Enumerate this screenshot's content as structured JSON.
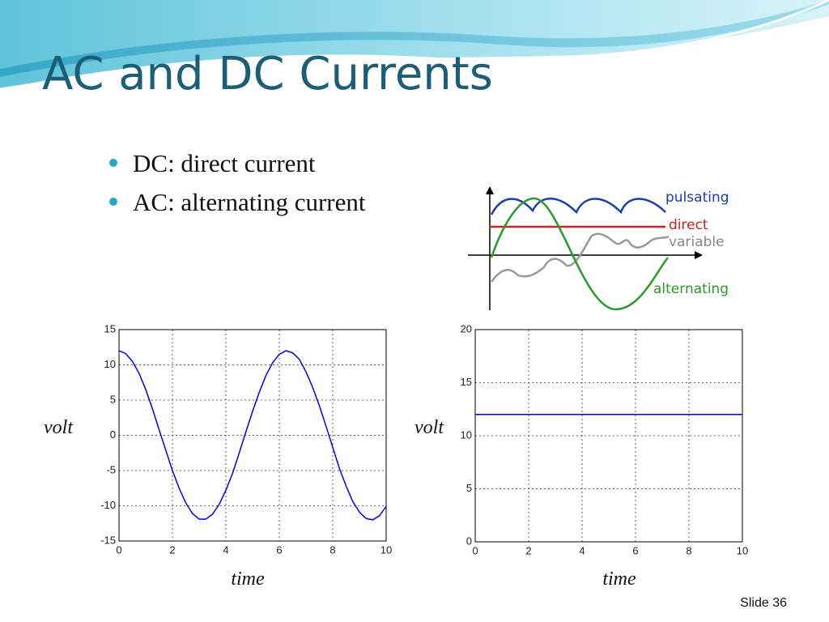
{
  "title": "AC and DC Currents",
  "bullets": [
    "DC: direct current",
    "AC: alternating current"
  ],
  "diagram": {
    "labels": [
      "pulsating",
      "direct",
      "variable",
      "alternating"
    ]
  },
  "slide_number": "Slide 36",
  "chart_data": [
    {
      "type": "line",
      "x_label": "time",
      "y_label": "volt",
      "xlim": [
        0,
        10
      ],
      "ylim": [
        -15,
        15
      ],
      "xticks": [
        0,
        2,
        4,
        6,
        8,
        10
      ],
      "yticks": [
        -15,
        -10,
        -5,
        0,
        5,
        10,
        15
      ],
      "grid": true,
      "color": "#0000ee",
      "x": [
        0,
        0.25,
        0.5,
        0.75,
        1,
        1.25,
        1.5,
        1.75,
        2,
        2.25,
        2.5,
        2.75,
        3,
        3.25,
        3.5,
        3.75,
        4,
        4.25,
        4.5,
        4.75,
        5,
        5.25,
        5.5,
        5.75,
        6,
        6.25,
        6.5,
        6.75,
        7,
        7.25,
        7.5,
        7.75,
        8,
        8.25,
        8.5,
        8.75,
        9,
        9.25,
        9.5,
        9.75,
        10
      ],
      "values": [
        12,
        11.6,
        10.5,
        8.8,
        6.5,
        3.8,
        0.8,
        -2.1,
        -5,
        -7.5,
        -9.6,
        -11.1,
        -11.9,
        -11.9,
        -11.2,
        -9.8,
        -7.8,
        -5.4,
        -2.5,
        0.5,
        3.4,
        6.1,
        8.5,
        10.3,
        11.5,
        12,
        11.7,
        10.8,
        9,
        6.8,
        4.2,
        1.3,
        -1.7,
        -4.7,
        -7.2,
        -9.4,
        -10.9,
        -11.8,
        -12,
        -11.4,
        -10.1
      ]
    },
    {
      "type": "line",
      "x_label": "time",
      "y_label": "volt",
      "xlim": [
        0,
        10
      ],
      "ylim": [
        0,
        20
      ],
      "xticks": [
        0,
        2,
        4,
        6,
        8,
        10
      ],
      "yticks": [
        0,
        5,
        10,
        15,
        20
      ],
      "grid": true,
      "color": "#0000ee",
      "x": [
        0,
        10
      ],
      "values": [
        12,
        12
      ]
    }
  ]
}
